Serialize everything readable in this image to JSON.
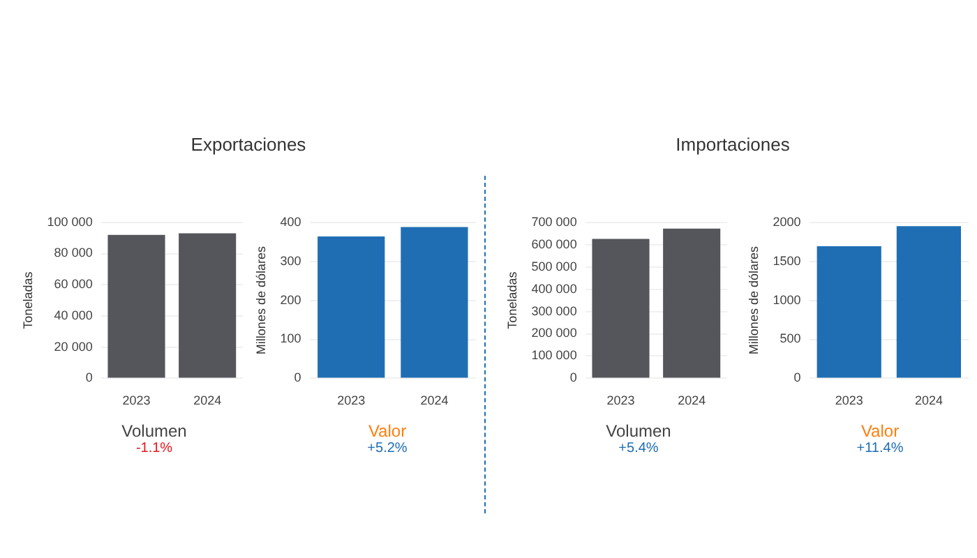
{
  "chart_data": [
    {
      "type": "bar",
      "title": "Exportaciones",
      "categories": [
        "2023",
        "2024"
      ],
      "ylabel": "Toneladas",
      "xlabel": "Volumen",
      "annotations": [
        "-1.1%"
      ],
      "color": "#54565b",
      "values": [
        92000,
        93000
      ],
      "ylim": [
        0,
        100000
      ],
      "yticks": [
        {
          "value": 0,
          "label": "0"
        },
        {
          "value": 20000,
          "label": "20 000"
        },
        {
          "value": 40000,
          "label": "40 000"
        },
        {
          "value": 60000,
          "label": "60 000"
        },
        {
          "value": 80000,
          "label": "80 000"
        },
        {
          "value": 100000,
          "label": "100 000"
        }
      ],
      "grid": "y"
    },
    {
      "type": "bar",
      "categories": [
        "2023",
        "2024"
      ],
      "ylabel": "Millones de dólares",
      "xlabel": "Valor",
      "annotations": [
        "+5.2%"
      ],
      "color": "#1f6eb4",
      "values": [
        364,
        388
      ],
      "ylim": [
        0,
        400
      ],
      "yticks": [
        0,
        100,
        200,
        300,
        400
      ],
      "grid": "y"
    },
    {
      "type": "bar",
      "title": "Importaciones",
      "categories": [
        "2023",
        "2024"
      ],
      "ylabel": "Toneladas",
      "xlabel": "Volumen",
      "annotations": [
        "+5.4%"
      ],
      "color": "#54565b",
      "values": [
        626000,
        672000
      ],
      "ylim": [
        0,
        700000
      ],
      "yticks": [
        {
          "value": 0,
          "label": "0"
        },
        {
          "value": 100000,
          "label": "100 000"
        },
        {
          "value": 200000,
          "label": "200 000"
        },
        {
          "value": 300000,
          "label": "300 000"
        },
        {
          "value": 400000,
          "label": "400 000"
        },
        {
          "value": 500000,
          "label": "500 000"
        },
        {
          "value": 600000,
          "label": "600 000"
        },
        {
          "value": 700000,
          "label": "700 000"
        }
      ],
      "grid": "y"
    },
    {
      "type": "bar",
      "categories": [
        "2023",
        "2024"
      ],
      "ylabel": "Millones de dólares",
      "xlabel": "Valor",
      "annotations": [
        "+11.4%"
      ],
      "color": "#1f6eb4",
      "values": [
        1693,
        1951
      ],
      "ylim": [
        0,
        2000
      ],
      "yticks": [
        0,
        500,
        1000,
        1500,
        2000
      ],
      "grid": "y"
    }
  ]
}
